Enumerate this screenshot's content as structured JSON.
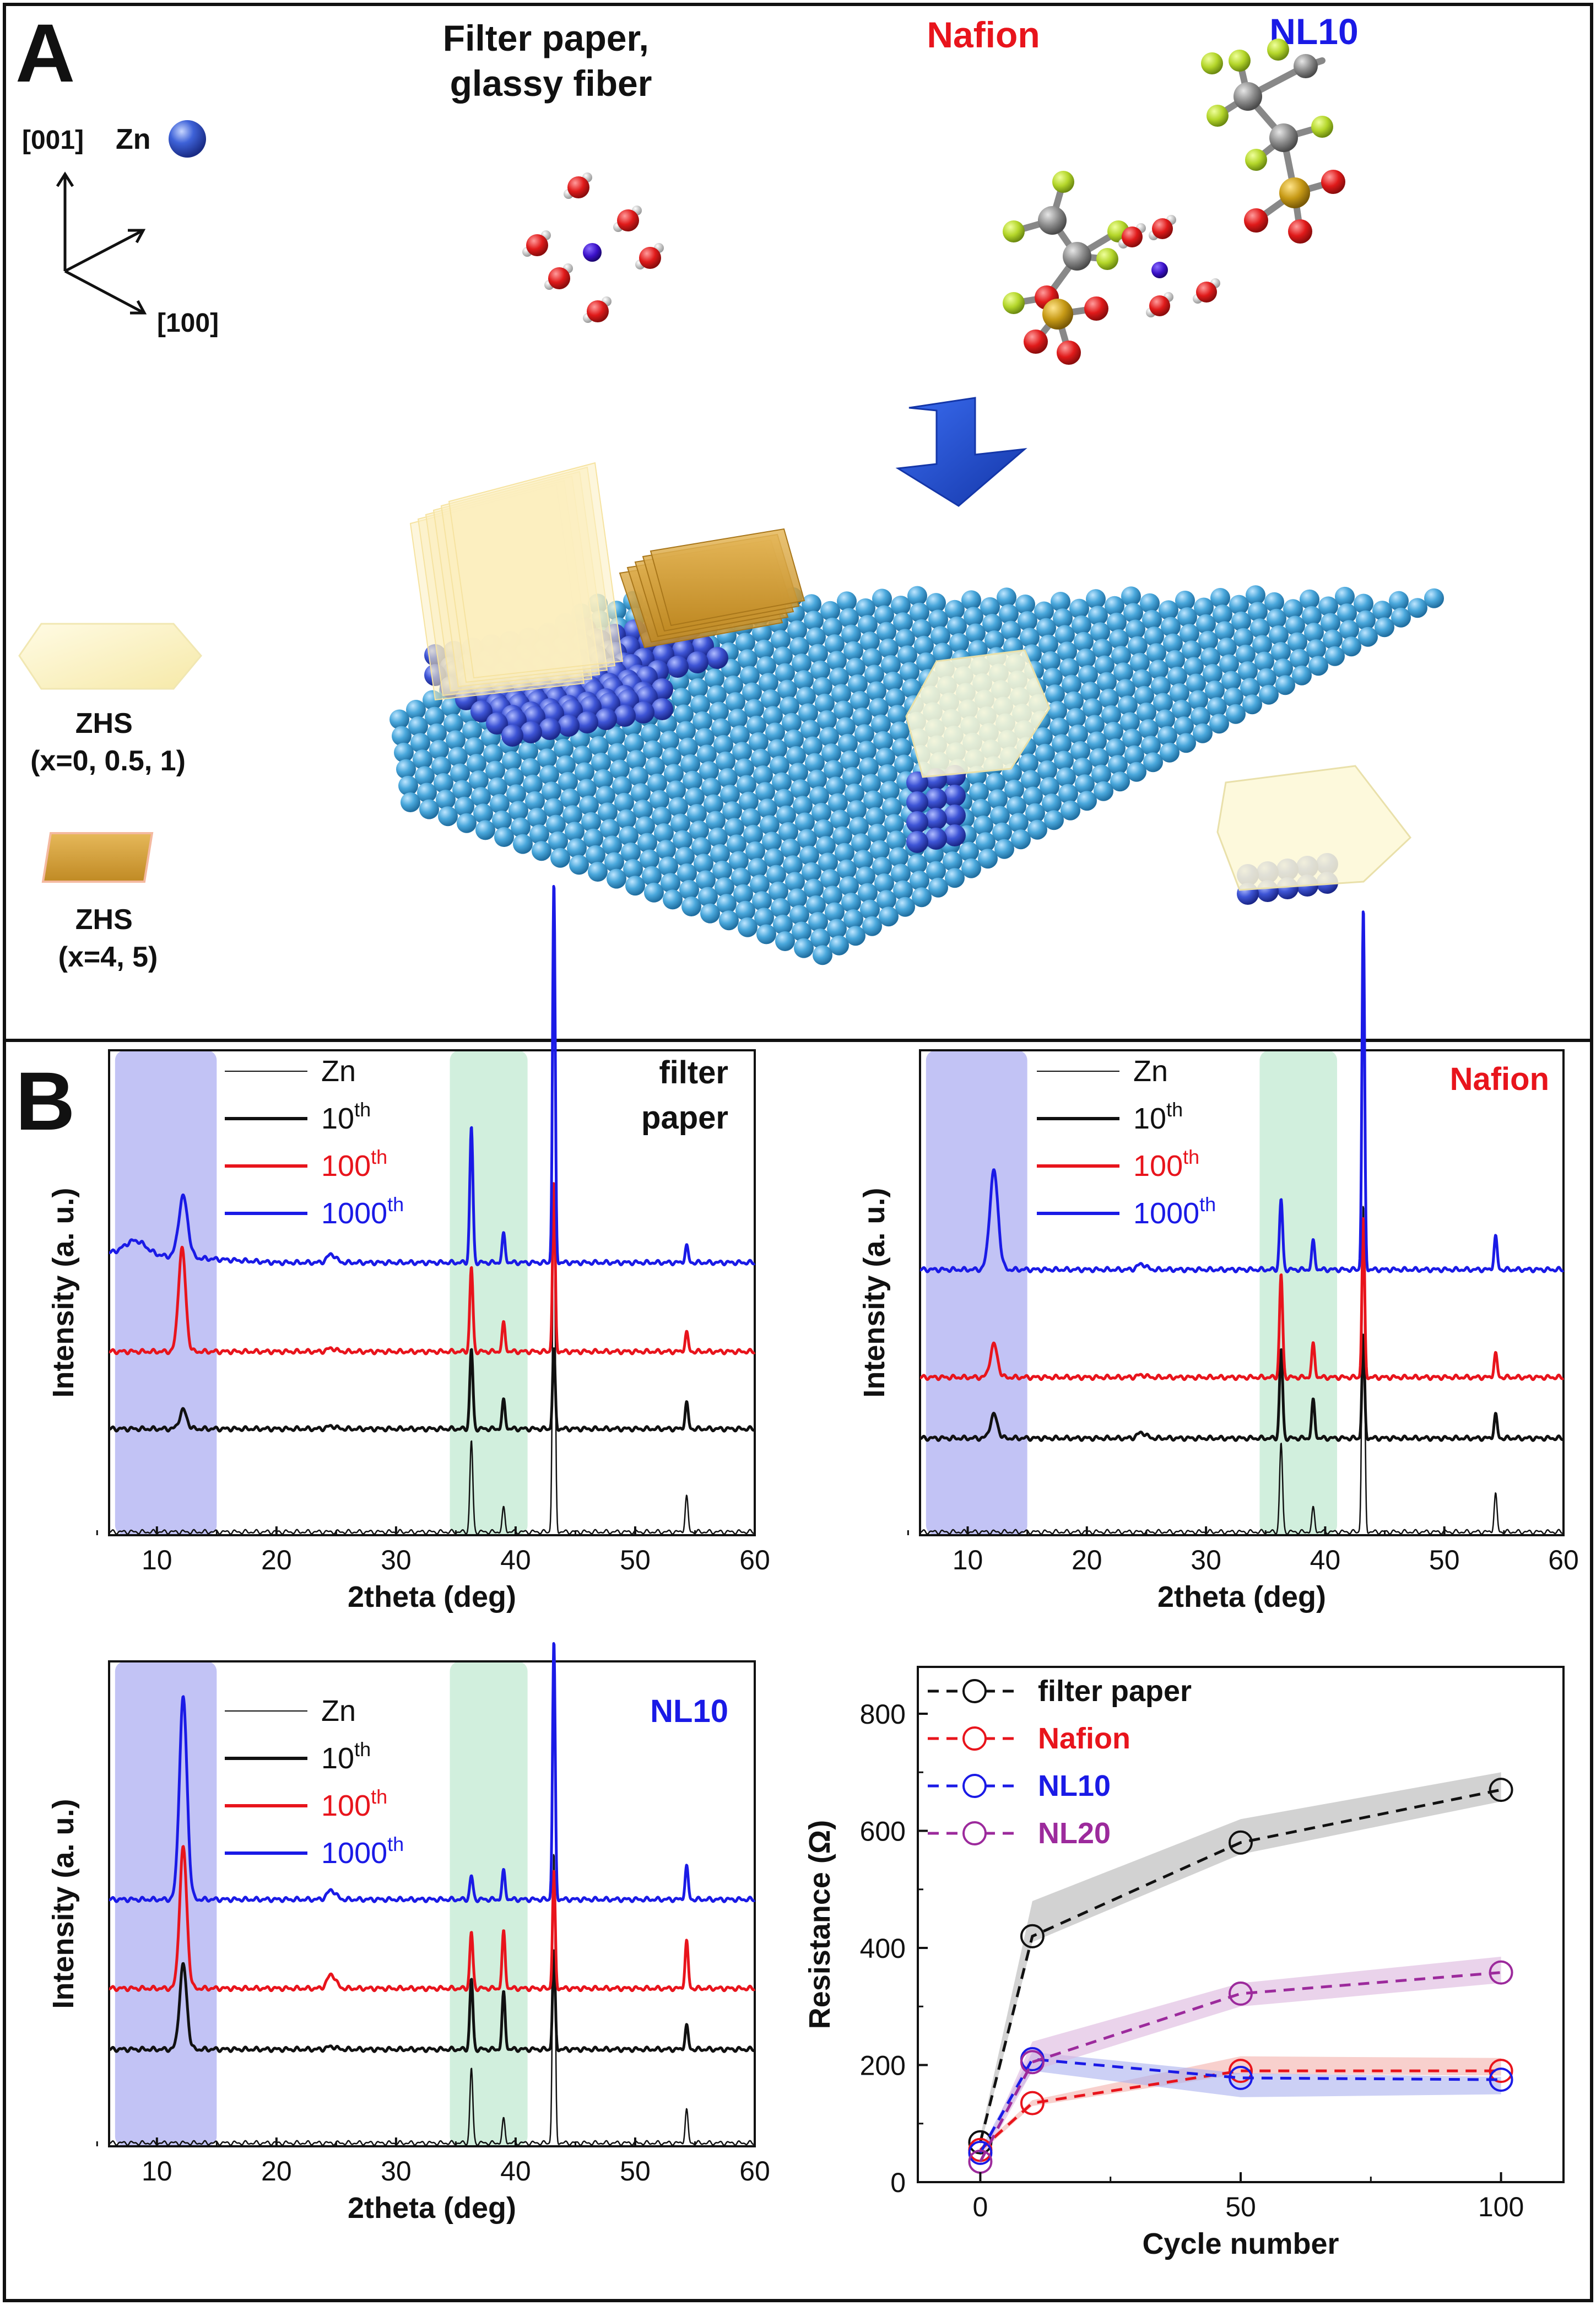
{
  "panelA": {
    "label": "A",
    "axes": {
      "c_axis": "[001]",
      "a_axis": "[100]",
      "atom_label": "Zn"
    },
    "groups": [
      {
        "lines": [
          "Filter paper,",
          "glassy fiber"
        ],
        "color": "#111111"
      },
      {
        "lines": [
          "Nafion"
        ],
        "color": "#e8141c"
      },
      {
        "lines": [
          "NL10"
        ],
        "color": "#1a1ae6"
      }
    ],
    "legend": [
      {
        "name_line1": "ZHS",
        "name_line2": "(x=0, 0.5, 1)",
        "shape": "hexagon",
        "color": "#fbf3c4"
      },
      {
        "name_line1": "ZHS",
        "name_line2": "(x=4, 5)",
        "shape": "parallelogram",
        "color": "#d9a53a"
      }
    ],
    "colors": {
      "substrate": "#4aa8dc",
      "deposit": "#3e55d6",
      "arrow": "#1f4fd8"
    }
  },
  "panelB": {
    "label": "B"
  },
  "xrd_common": {
    "xlabel": "2theta (deg)",
    "ylabel": "Intensity (a. u.)",
    "xlim": [
      6,
      60
    ],
    "xticks": [
      10,
      20,
      30,
      40,
      50,
      60
    ],
    "bands": [
      {
        "range": [
          6.5,
          15
        ],
        "color": "#b7b8f3"
      },
      {
        "range": [
          34.5,
          41
        ],
        "color": "#c9ecd7"
      }
    ],
    "legend": [
      {
        "text": "Zn",
        "sup": "",
        "color": "#111111",
        "width": 2
      },
      {
        "text": "10",
        "sup": "th",
        "color": "#111111",
        "width": 6
      },
      {
        "text": "100",
        "sup": "th",
        "color": "#e8141c",
        "width": 6
      },
      {
        "text": "1000",
        "sup": "th",
        "color": "#1a1ae6",
        "width": 6
      }
    ]
  },
  "chart_data": [
    {
      "type": "line",
      "title": "filter paper",
      "title_lines": [
        "filter",
        "paper"
      ],
      "xlabel": "2theta (deg)",
      "ylabel": "Intensity (a. u.)",
      "xlim": [
        6,
        60
      ],
      "series": [
        {
          "name": "Zn",
          "color": "#111111",
          "offset": 0,
          "base_slope": 0,
          "peaks": [
            [
              36.3,
              0.195,
              0.12
            ],
            [
              39.0,
              0.05,
              0.12
            ],
            [
              43.2,
              0.74,
              0.11
            ],
            [
              54.3,
              0.075,
              0.12
            ]
          ]
        },
        {
          "name": "10th",
          "color": "#111111",
          "offset": 0.22,
          "base_slope": 0,
          "peaks": [
            [
              12.2,
              0.04,
              0.3
            ],
            [
              24.6,
              0.006,
              0.35
            ],
            [
              36.3,
              0.17,
              0.13
            ],
            [
              39.0,
              0.06,
              0.13
            ],
            [
              43.2,
              0.17,
              0.11
            ],
            [
              54.3,
              0.055,
              0.13
            ]
          ]
        },
        {
          "name": "100th",
          "color": "#e8141c",
          "offset": 0.385,
          "base_slope": 0,
          "peaks": [
            [
              12.1,
              0.22,
              0.3
            ],
            [
              24.6,
              0.007,
              0.35
            ],
            [
              36.3,
              0.18,
              0.13
            ],
            [
              39.0,
              0.06,
              0.13
            ],
            [
              43.2,
              0.36,
              0.11
            ],
            [
              54.3,
              0.04,
              0.13
            ]
          ]
        },
        {
          "name": "1000th",
          "color": "#1a1ae6",
          "offset": 0.575,
          "base_slope": 0.02,
          "peaks": [
            [
              8.2,
              0.03,
              0.9
            ],
            [
              12.2,
              0.13,
              0.38
            ],
            [
              24.6,
              0.018,
              0.35
            ],
            [
              36.3,
              0.29,
              0.13
            ],
            [
              39.0,
              0.06,
              0.13
            ],
            [
              43.2,
              0.81,
              0.11
            ],
            [
              54.3,
              0.035,
              0.13
            ]
          ]
        }
      ]
    },
    {
      "type": "line",
      "title": "Nafion",
      "title_lines": [
        "Nafion"
      ],
      "xlabel": "2theta (deg)",
      "ylabel": "Intensity (a. u.)",
      "xlim": [
        6,
        60
      ],
      "series": [
        {
          "name": "Zn",
          "color": "#111111",
          "offset": 0,
          "base_slope": 0,
          "peaks": [
            [
              36.3,
              0.19,
              0.12
            ],
            [
              39.0,
              0.05,
              0.12
            ],
            [
              43.2,
              0.7,
              0.11
            ],
            [
              54.3,
              0.08,
              0.12
            ]
          ]
        },
        {
          "name": "10th",
          "color": "#111111",
          "offset": 0.2,
          "base_slope": 0,
          "peaks": [
            [
              12.2,
              0.05,
              0.3
            ],
            [
              24.6,
              0.012,
              0.35
            ],
            [
              36.3,
              0.19,
              0.13
            ],
            [
              39.0,
              0.08,
              0.13
            ],
            [
              43.2,
              0.22,
              0.11
            ],
            [
              54.3,
              0.05,
              0.13
            ]
          ]
        },
        {
          "name": "100th",
          "color": "#e8141c",
          "offset": 0.33,
          "base_slope": 0,
          "peaks": [
            [
              12.2,
              0.07,
              0.3
            ],
            [
              24.6,
              0.005,
              0.35
            ],
            [
              36.3,
              0.22,
              0.13
            ],
            [
              39.0,
              0.07,
              0.13
            ],
            [
              43.2,
              0.34,
              0.11
            ],
            [
              54.3,
              0.05,
              0.13
            ]
          ]
        },
        {
          "name": "1000th",
          "color": "#1a1ae6",
          "offset": 0.56,
          "base_slope": 0,
          "peaks": [
            [
              12.2,
              0.21,
              0.35
            ],
            [
              24.6,
              0.012,
              0.35
            ],
            [
              36.3,
              0.15,
              0.13
            ],
            [
              39.0,
              0.06,
              0.13
            ],
            [
              43.2,
              0.77,
              0.11
            ],
            [
              54.3,
              0.07,
              0.13
            ]
          ]
        }
      ]
    },
    {
      "type": "line",
      "title": "NL10",
      "title_lines": [
        "NL10"
      ],
      "xlabel": "2theta (deg)",
      "ylabel": "Intensity (a. u.)",
      "xlim": [
        6,
        60
      ],
      "series": [
        {
          "name": "Zn",
          "color": "#111111",
          "offset": 0,
          "base_slope": 0,
          "peaks": [
            [
              36.3,
              0.16,
              0.12
            ],
            [
              39.0,
              0.05,
              0.12
            ],
            [
              43.2,
              0.62,
              0.11
            ],
            [
              54.3,
              0.07,
              0.12
            ]
          ]
        },
        {
          "name": "10th",
          "color": "#111111",
          "offset": 0.2,
          "base_slope": 0,
          "peaks": [
            [
              12.2,
              0.18,
              0.3
            ],
            [
              24.6,
              0.006,
              0.35
            ],
            [
              36.3,
              0.15,
              0.13
            ],
            [
              39.0,
              0.12,
              0.13
            ],
            [
              43.2,
              0.21,
              0.11
            ],
            [
              54.3,
              0.05,
              0.13
            ]
          ]
        },
        {
          "name": "100th",
          "color": "#e8141c",
          "offset": 0.33,
          "base_slope": 0,
          "peaks": [
            [
              12.2,
              0.3,
              0.3
            ],
            [
              24.6,
              0.03,
              0.35
            ],
            [
              36.3,
              0.12,
              0.13
            ],
            [
              39.0,
              0.12,
              0.13
            ],
            [
              43.2,
              0.25,
              0.11
            ],
            [
              54.3,
              0.1,
              0.13
            ]
          ]
        },
        {
          "name": "1000th",
          "color": "#1a1ae6",
          "offset": 0.52,
          "base_slope": 0,
          "peaks": [
            [
              12.2,
              0.43,
              0.32
            ],
            [
              24.6,
              0.02,
              0.35
            ],
            [
              36.3,
              0.05,
              0.13
            ],
            [
              39.0,
              0.06,
              0.13
            ],
            [
              43.2,
              0.55,
              0.11
            ],
            [
              54.3,
              0.07,
              0.13
            ]
          ]
        }
      ]
    },
    {
      "type": "line",
      "title": "",
      "xlabel": "Cycle number",
      "ylabel": "Resistance (Ω)",
      "xlim": [
        -12,
        112
      ],
      "ylim": [
        0,
        880
      ],
      "xticks": [
        0,
        50,
        100
      ],
      "yticks": [
        0,
        200,
        400,
        600,
        800
      ],
      "x": [
        0,
        10,
        50,
        100
      ],
      "series": [
        {
          "name": "filter paper",
          "color": "#111111",
          "band_color": "#b4b4b4",
          "values": [
            68,
            420,
            580,
            670
          ],
          "band_low": [
            60,
            410,
            560,
            650
          ],
          "band_high": [
            78,
            480,
            620,
            700
          ]
        },
        {
          "name": "Nafion",
          "color": "#e8141c",
          "band_color": "#f3b0ac",
          "values": [
            55,
            135,
            190,
            190
          ],
          "band_low": [
            50,
            130,
            185,
            182
          ],
          "band_high": [
            60,
            140,
            215,
            212
          ]
        },
        {
          "name": "NL10",
          "color": "#1a1ae6",
          "band_color": "#aab0ef",
          "values": [
            50,
            210,
            178,
            175
          ],
          "band_low": [
            45,
            190,
            145,
            150
          ],
          "band_high": [
            55,
            222,
            186,
            180
          ]
        },
        {
          "name": "NL20",
          "color": "#9c2a9c",
          "band_color": "#dcb6dd",
          "values": [
            35,
            205,
            322,
            358
          ],
          "band_low": [
            30,
            190,
            300,
            340
          ],
          "band_high": [
            40,
            240,
            340,
            385
          ]
        }
      ]
    }
  ]
}
